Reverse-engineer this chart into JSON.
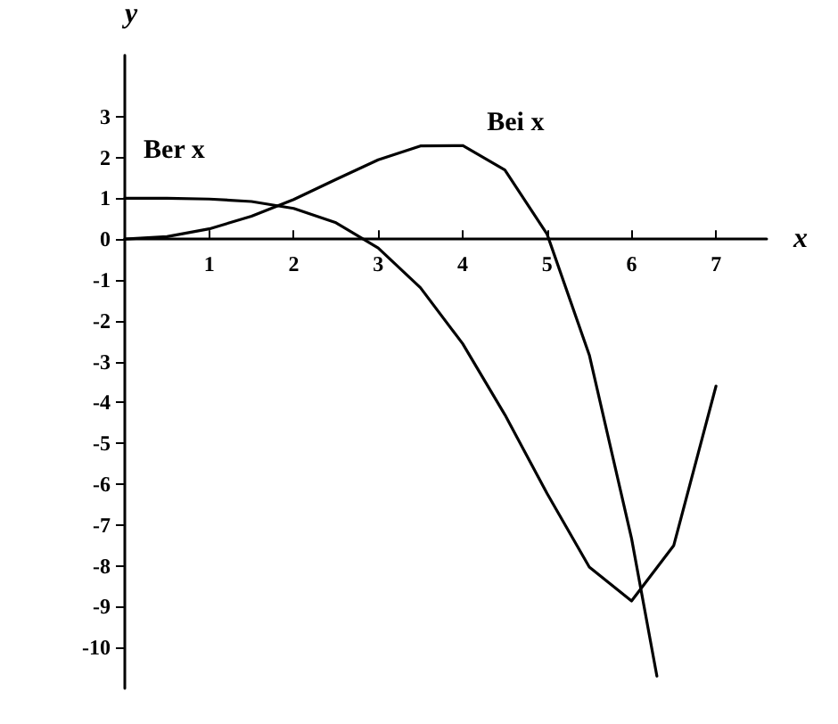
{
  "chart_data": {
    "type": "line",
    "xlabel": "x",
    "ylabel": "y",
    "x": [
      0,
      0.5,
      1,
      1.5,
      2,
      2.5,
      3,
      3.5,
      4,
      4.5,
      5,
      5.5,
      6,
      6.5,
      7
    ],
    "series": [
      {
        "name": "Ber x",
        "color": "#000000",
        "values": [
          1,
          1.0,
          0.98,
          0.92,
          0.75,
          0.4,
          -0.22,
          -1.19,
          -2.56,
          -4.3,
          -6.23,
          -8.03,
          -8.86,
          -7.5,
          -3.6
        ]
      },
      {
        "name": "Bei x",
        "color": "#000000",
        "x": [
          0,
          0.5,
          1,
          1.5,
          2,
          2.5,
          3,
          3.5,
          4,
          4.5,
          5,
          5.5,
          6,
          6.3
        ],
        "values": [
          0,
          0.06,
          0.25,
          0.56,
          0.97,
          1.46,
          1.94,
          2.28,
          2.29,
          1.69,
          0.12,
          -2.84,
          -7.33,
          -10.7
        ]
      }
    ],
    "xlim": [
      0,
      7.6
    ],
    "ylim": [
      -11,
      4.5
    ],
    "xticks": [
      1,
      2,
      3,
      4,
      5,
      6,
      7
    ],
    "yticks": [
      -10,
      -9,
      -8,
      -7,
      -6,
      -5,
      -4,
      -3,
      -2,
      -1,
      0,
      1,
      2,
      3
    ],
    "grid": false,
    "legend": false,
    "marker": "none",
    "line_style": "solid"
  }
}
